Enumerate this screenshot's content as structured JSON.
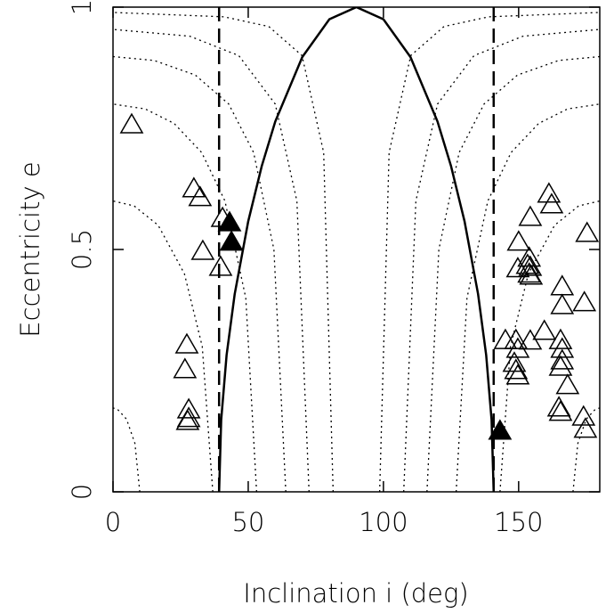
{
  "chart_data": {
    "type": "scatter",
    "x_label": "Inclination i (deg)",
    "y_label": "Eccentricity e",
    "xlim": [
      0,
      180
    ],
    "ylim": [
      0,
      1
    ],
    "xticks": [
      0,
      50,
      100,
      150
    ],
    "yticks": [
      0,
      0.5,
      1
    ],
    "series": [
      {
        "kind": "line",
        "dash": "solid",
        "color": "#000000",
        "x": [
          39.23,
          40,
          42,
          45,
          50,
          55,
          60,
          70,
          80,
          90,
          100,
          110,
          120,
          125,
          130,
          135,
          138,
          140,
          140.77
        ],
        "values": [
          0,
          0.148,
          0.282,
          0.408,
          0.558,
          0.672,
          0.764,
          0.897,
          0.975,
          1,
          0.975,
          0.897,
          0.764,
          0.672,
          0.558,
          0.408,
          0.282,
          0.148,
          0
        ]
      },
      {
        "kind": "line",
        "dash": "dashed",
        "color": "#000000",
        "x": [
          39.23,
          39.23
        ],
        "values": [
          0,
          1
        ]
      },
      {
        "kind": "line",
        "dash": "dashed",
        "color": "#000000",
        "x": [
          140.77,
          140.77
        ],
        "values": [
          0,
          1
        ]
      },
      {
        "kind": "line",
        "dash": "dotted",
        "color": "#000000",
        "x": [
          9.9,
          8.1,
          5,
          1.7,
          0
        ],
        "values": [
          0,
          0.1,
          0.15,
          0.17,
          0.173
        ]
      },
      {
        "kind": "line",
        "dash": "dotted",
        "color": "#000000",
        "x": [
          170.1,
          171.9,
          175,
          178.3,
          180
        ],
        "values": [
          0,
          0.1,
          0.15,
          0.17,
          0.173
        ]
      },
      {
        "kind": "line",
        "dash": "dotted",
        "color": "#000000",
        "x": [
          36.9,
          33,
          26.4,
          16.7,
          7.8,
          0
        ],
        "values": [
          0,
          0.3,
          0.45,
          0.55,
          0.59,
          0.6
        ]
      },
      {
        "kind": "line",
        "dash": "dotted",
        "color": "#000000",
        "x": [
          143.1,
          147,
          153.6,
          163.3,
          172.2,
          180
        ],
        "values": [
          0,
          0.3,
          0.45,
          0.55,
          0.59,
          0.6
        ]
      },
      {
        "kind": "line",
        "dash": "dotted",
        "color": "#000000",
        "x": [
          53.1,
          49.1,
          41.4,
          32.8,
          22.6,
          11.9,
          0
        ],
        "values": [
          0,
          0.4,
          0.6,
          0.7,
          0.76,
          0.79,
          0.8
        ]
      },
      {
        "kind": "line",
        "dash": "dotted",
        "color": "#000000",
        "x": [
          126.9,
          130.9,
          138.6,
          147.2,
          157.4,
          168.1,
          180
        ],
        "values": [
          0,
          0.4,
          0.6,
          0.7,
          0.76,
          0.79,
          0.8
        ]
      },
      {
        "kind": "line",
        "dash": "dotted",
        "color": "#000000",
        "x": [
          63.9,
          59.5,
          52,
          42.8,
          30.4,
          15.2,
          0
        ],
        "values": [
          0,
          0.5,
          0.7,
          0.8,
          0.86,
          0.89,
          0.898
        ]
      },
      {
        "kind": "line",
        "dash": "dotted",
        "color": "#000000",
        "x": [
          116.1,
          120.5,
          128,
          137.2,
          149.6,
          164.8,
          180
        ],
        "values": [
          0,
          0.5,
          0.7,
          0.8,
          0.86,
          0.89,
          0.898
        ]
      },
      {
        "kind": "line",
        "dash": "dotted",
        "color": "#000000",
        "x": [
          72.5,
          68,
          60,
          46.5,
          28.4,
          0
        ],
        "values": [
          0,
          0.6,
          0.8,
          0.9,
          0.94,
          0.954
        ]
      },
      {
        "kind": "line",
        "dash": "dotted",
        "color": "#000000",
        "x": [
          107.5,
          112,
          120,
          133.5,
          151.6,
          180
        ],
        "values": [
          0,
          0.6,
          0.8,
          0.9,
          0.94,
          0.954
        ]
      },
      {
        "kind": "line",
        "dash": "dotted",
        "color": "#000000",
        "x": [
          81.4,
          77.9,
          69.9,
          57.6,
          41.1,
          0
        ],
        "values": [
          0,
          0.7,
          0.9,
          0.96,
          0.98,
          0.989
        ]
      },
      {
        "kind": "line",
        "dash": "dotted",
        "color": "#000000",
        "x": [
          98.6,
          102.1,
          110.1,
          122.4,
          138.9,
          180
        ],
        "values": [
          0,
          0.7,
          0.9,
          0.96,
          0.98,
          0.989
        ]
      },
      {
        "kind": "scatter",
        "marker": "open-triangle",
        "color": "#000000",
        "x": [
          6.9,
          29.9,
          32.2,
          33.2,
          40.5,
          39.8,
          27.3,
          26.6,
          28,
          28,
          27.6,
          161.2,
          162.2,
          154.3,
          150,
          149.7,
          153.9,
          154.3,
          153.9,
          154.6,
          153.3,
          175.3,
          166.1,
          166.1,
          174.3,
          159.5,
          145.1,
          149,
          149.7,
          154.3,
          148.4,
          149,
          149.7,
          165.5,
          166.1,
          166.1,
          165.5,
          168.1,
          164.9,
          165.5,
          174,
          174.7
        ],
        "values": [
          0.757,
          0.625,
          0.607,
          0.496,
          0.564,
          0.463,
          0.303,
          0.252,
          0.169,
          0.151,
          0.145,
          0.614,
          0.592,
          0.566,
          0.515,
          0.46,
          0.482,
          0.463,
          0.449,
          0.445,
          0.467,
          0.533,
          0.423,
          0.384,
          0.39,
          0.331,
          0.312,
          0.312,
          0.294,
          0.311,
          0.265,
          0.25,
          0.239,
          0.312,
          0.294,
          0.27,
          0.257,
          0.219,
          0.173,
          0.164,
          0.154,
          0.129
        ]
      },
      {
        "kind": "scatter",
        "marker": "filled-triangle",
        "color": "#000000",
        "x": [
          43.1,
          43.8,
          143.1
        ],
        "values": [
          0.555,
          0.515,
          0.125
        ]
      }
    ]
  }
}
